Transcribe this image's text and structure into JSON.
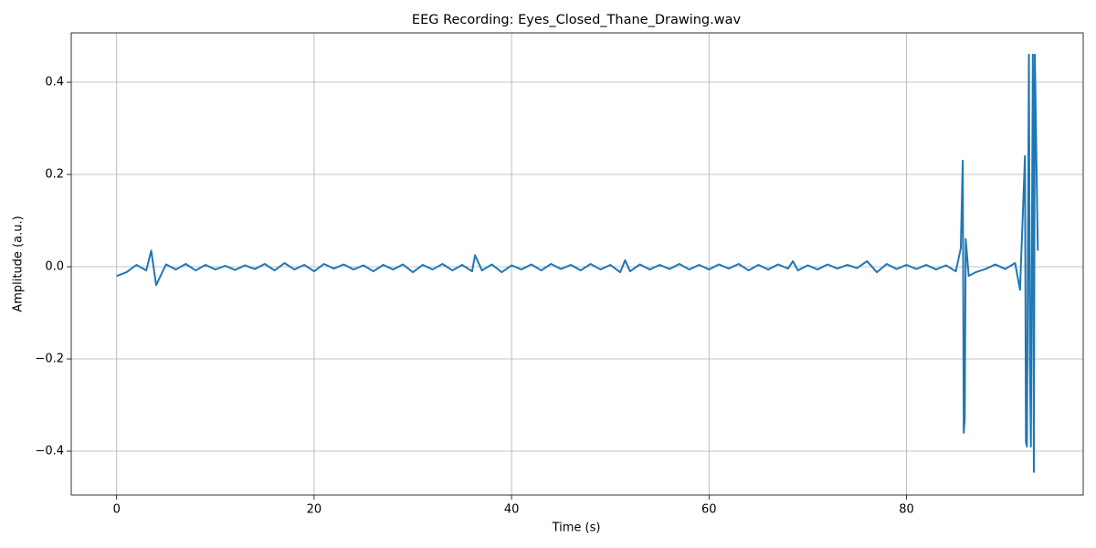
{
  "chart_data": {
    "type": "line",
    "title": "EEG Recording: Eyes_Closed_Thane_Drawing.wav",
    "x_label": "Time (s)",
    "y_label": "Amplitude (a.u.)",
    "xlim": [
      -4.6,
      97.9
    ],
    "ylim": [
      -0.495,
      0.507
    ],
    "xticks": [
      0,
      20,
      40,
      60,
      80
    ],
    "yticks": [
      {
        "value": -0.4,
        "label": "−0.4"
      },
      {
        "value": -0.2,
        "label": "−0.2"
      },
      {
        "value": 0,
        "label": "0.0"
      },
      0.2,
      0.4
    ],
    "grid": true,
    "series": [
      {
        "color": "#1f77b4",
        "x": [
          0,
          1,
          2,
          3,
          3.5,
          4,
          5,
          6,
          7,
          8,
          9,
          10,
          11,
          12,
          13,
          14,
          15,
          16,
          17,
          18,
          19,
          20,
          21,
          22,
          23,
          24,
          25,
          26,
          27,
          28,
          29,
          30,
          31,
          32,
          33,
          34,
          35,
          36,
          36.3,
          37,
          38,
          39,
          40,
          41,
          42,
          43,
          44,
          45,
          46,
          47,
          48,
          49,
          50,
          51,
          51.5,
          52,
          53,
          54,
          55,
          56,
          57,
          58,
          59,
          60,
          61,
          62,
          63,
          64,
          65,
          66,
          67,
          68,
          68.5,
          69,
          70,
          71,
          72,
          73,
          74,
          75,
          76,
          77,
          78,
          79,
          80,
          81,
          82,
          83,
          84,
          85,
          85.5,
          85.7,
          85.8,
          85.9,
          86,
          86.3,
          87,
          88,
          89,
          90,
          91,
          91.5,
          92,
          92.1,
          92.2,
          92.4,
          92.5,
          92.6,
          92.8,
          92.9,
          93.0,
          93.3
        ],
        "values": [
          -0.02,
          -0.012,
          0.004,
          -0.008,
          0.035,
          -0.04,
          0.005,
          -0.006,
          0.006,
          -0.008,
          0.004,
          -0.006,
          0.002,
          -0.007,
          0.003,
          -0.005,
          0.006,
          -0.008,
          0.008,
          -0.006,
          0.004,
          -0.01,
          0.006,
          -0.004,
          0.005,
          -0.006,
          0.003,
          -0.01,
          0.004,
          -0.006,
          0.005,
          -0.012,
          0.004,
          -0.006,
          0.006,
          -0.008,
          0.004,
          -0.01,
          0.025,
          -0.008,
          0.005,
          -0.012,
          0.003,
          -0.006,
          0.005,
          -0.008,
          0.006,
          -0.005,
          0.004,
          -0.008,
          0.006,
          -0.006,
          0.004,
          -0.012,
          0.014,
          -0.01,
          0.005,
          -0.006,
          0.004,
          -0.005,
          0.006,
          -0.006,
          0.004,
          -0.006,
          0.005,
          -0.004,
          0.006,
          -0.008,
          0.004,
          -0.006,
          0.005,
          -0.004,
          0.012,
          -0.008,
          0.003,
          -0.006,
          0.005,
          -0.004,
          0.004,
          -0.003,
          0.012,
          -0.012,
          0.006,
          -0.005,
          0.004,
          -0.005,
          0.004,
          -0.006,
          0.003,
          -0.01,
          0.04,
          0.23,
          -0.36,
          -0.33,
          0.06,
          -0.02,
          -0.012,
          -0.005,
          0.005,
          -0.005,
          0.008,
          -0.05,
          0.24,
          -0.38,
          -0.39,
          0.46,
          -0.2,
          -0.39,
          0.46,
          -0.445,
          0.46,
          0.035
        ]
      }
    ]
  }
}
